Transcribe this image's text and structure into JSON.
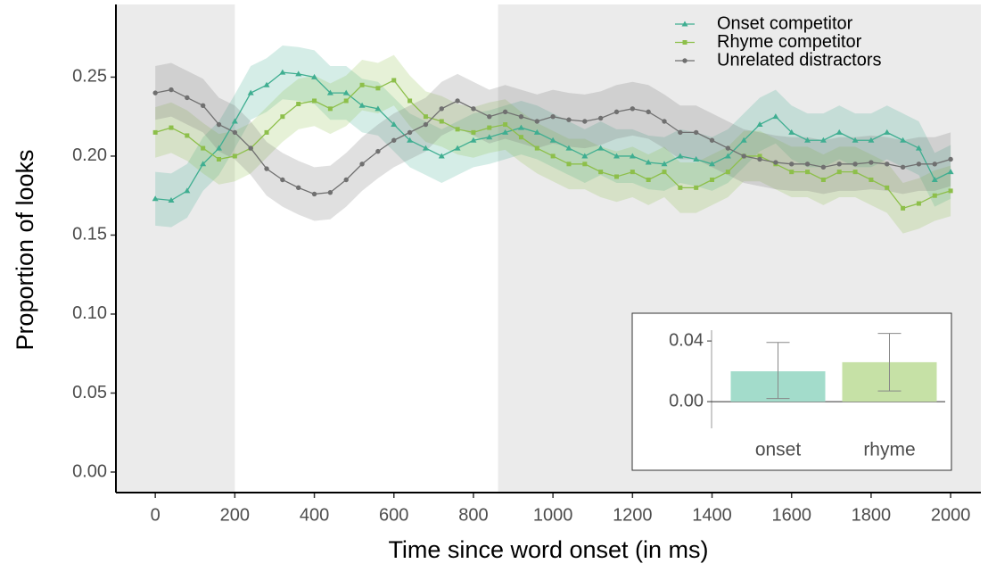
{
  "chart_data": {
    "type": "line",
    "x_label": "Time since word onset (in ms)",
    "y_label": "Proportion of looks",
    "xlim": [
      -99,
      2076
    ],
    "ylim": [
      -0.013,
      0.296
    ],
    "xticks": [
      0,
      200,
      400,
      600,
      800,
      1000,
      1200,
      1400,
      1600,
      1800,
      2000
    ],
    "yticks": [
      {
        "value": 0,
        "label": "0.00"
      },
      {
        "value": 0.05,
        "label": "0.05"
      },
      {
        "value": 0.1,
        "label": "0.10"
      },
      {
        "value": 0.15,
        "label": "0.15"
      },
      {
        "value": 0.2,
        "label": "0.20"
      },
      {
        "value": 0.25,
        "label": "0.25"
      }
    ],
    "shaded_regions": [
      [
        -99,
        200
      ],
      [
        862,
        2076
      ]
    ],
    "legend": "top-right",
    "x": [
      0,
      40,
      80,
      120,
      160,
      200,
      240,
      280,
      320,
      360,
      400,
      440,
      480,
      520,
      560,
      600,
      640,
      680,
      720,
      760,
      800,
      840,
      880,
      920,
      960,
      1000,
      1040,
      1080,
      1120,
      1160,
      1200,
      1240,
      1280,
      1320,
      1360,
      1400,
      1440,
      1480,
      1520,
      1560,
      1600,
      1640,
      1680,
      1720,
      1760,
      1800,
      1840,
      1880,
      1920,
      1960,
      2000
    ],
    "series": [
      {
        "name": "Onset competitor",
        "color": "#3fae91",
        "marker": "triangle",
        "error": 0.017,
        "values": [
          0.173,
          0.172,
          0.178,
          0.195,
          0.205,
          0.222,
          0.24,
          0.245,
          0.253,
          0.252,
          0.25,
          0.24,
          0.24,
          0.232,
          0.23,
          0.22,
          0.21,
          0.205,
          0.2,
          0.205,
          0.21,
          0.212,
          0.215,
          0.218,
          0.215,
          0.21,
          0.205,
          0.2,
          0.205,
          0.2,
          0.2,
          0.196,
          0.195,
          0.2,
          0.198,
          0.195,
          0.2,
          0.21,
          0.22,
          0.225,
          0.215,
          0.21,
          0.21,
          0.215,
          0.21,
          0.21,
          0.215,
          0.21,
          0.205,
          0.185,
          0.19
        ]
      },
      {
        "name": "Rhyme competitor",
        "color": "#8dbf4a",
        "marker": "square",
        "error": 0.016,
        "values": [
          0.215,
          0.218,
          0.213,
          0.205,
          0.198,
          0.2,
          0.205,
          0.215,
          0.225,
          0.233,
          0.235,
          0.23,
          0.235,
          0.245,
          0.243,
          0.248,
          0.235,
          0.225,
          0.222,
          0.217,
          0.215,
          0.218,
          0.22,
          0.212,
          0.205,
          0.2,
          0.195,
          0.195,
          0.19,
          0.187,
          0.19,
          0.185,
          0.19,
          0.18,
          0.18,
          0.185,
          0.19,
          0.2,
          0.2,
          0.195,
          0.19,
          0.19,
          0.185,
          0.19,
          0.19,
          0.185,
          0.18,
          0.167,
          0.17,
          0.175,
          0.178
        ]
      },
      {
        "name": "Unrelated distractors",
        "color": "#707070",
        "marker": "circle",
        "error": 0.017,
        "values": [
          0.24,
          0.242,
          0.237,
          0.232,
          0.22,
          0.215,
          0.205,
          0.192,
          0.185,
          0.18,
          0.176,
          0.177,
          0.185,
          0.195,
          0.203,
          0.21,
          0.215,
          0.22,
          0.23,
          0.235,
          0.23,
          0.225,
          0.228,
          0.225,
          0.222,
          0.225,
          0.223,
          0.222,
          0.224,
          0.228,
          0.23,
          0.228,
          0.222,
          0.215,
          0.215,
          0.21,
          0.205,
          0.2,
          0.198,
          0.196,
          0.195,
          0.195,
          0.193,
          0.195,
          0.195,
          0.196,
          0.195,
          0.193,
          0.195,
          0.195,
          0.198
        ]
      }
    ],
    "inset": {
      "type": "bar",
      "categories": [
        "onset",
        "rhyme"
      ],
      "values": [
        0.02,
        0.026
      ],
      "error_low": [
        0.002,
        0.007
      ],
      "error_high": [
        0.039,
        0.045
      ],
      "colors": [
        "#a3dccb",
        "#c6e1a6"
      ],
      "ylim": [
        -0.0176,
        0.053
      ],
      "yticks": [
        {
          "value": 0,
          "label": "0.00"
        },
        {
          "value": 0.04,
          "label": "0.04"
        }
      ]
    }
  }
}
